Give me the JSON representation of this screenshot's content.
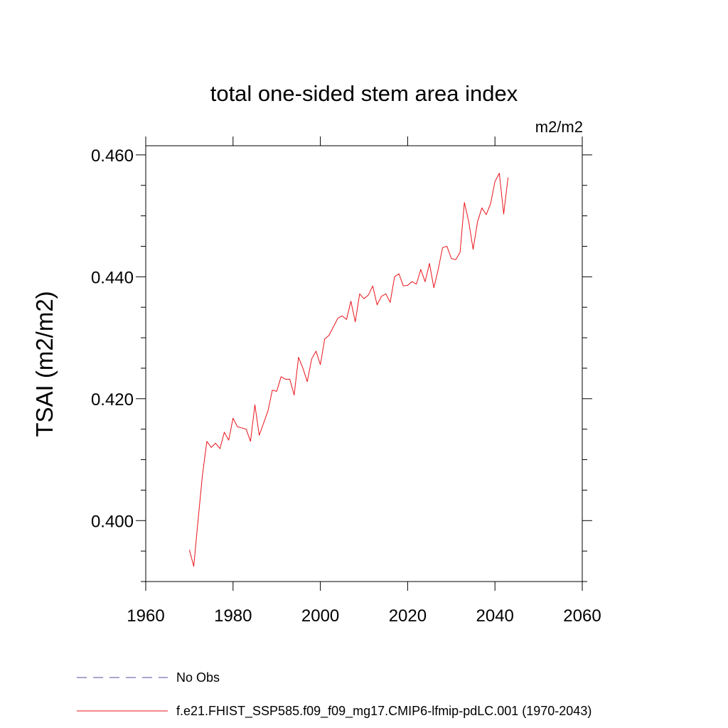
{
  "chart_data": {
    "type": "line",
    "title": "total one-sided stem area index",
    "units": "m2/m2",
    "xlabel": "",
    "ylabel": "TSAI  (m2/m2)",
    "xlim": [
      1960,
      2060
    ],
    "ylim": [
      0.39,
      0.4615
    ],
    "x_ticks": [
      1960,
      1980,
      2000,
      2020,
      2040,
      2060
    ],
    "x_tick_labels": [
      "1960",
      "1980",
      "2000",
      "2020",
      "2040",
      "2060"
    ],
    "y_ticks": [
      0.4,
      0.42,
      0.44,
      0.46
    ],
    "y_tick_labels": [
      "0.400",
      "0.420",
      "0.440",
      "0.460"
    ],
    "grid": false,
    "legend": [
      {
        "label": "No Obs",
        "color": "#5a4a9a",
        "style": "dashed"
      },
      {
        "label": "f.e21.FHIST_SSP585.f09_f09_mg17.CMIP6-lfmip-pdLC.001 (1970-2043)",
        "color": "#e8141b",
        "style": "solid"
      }
    ],
    "series": [
      {
        "name": "f.e21.FHIST_SSP585.f09_f09_mg17.CMIP6-lfmip-pdLC.001 (1970-2043)",
        "color": "#e8141b",
        "x": [
          1970,
          1971,
          1972,
          1973,
          1974,
          1975,
          1976,
          1977,
          1978,
          1979,
          1980,
          1981,
          1982,
          1983,
          1984,
          1985,
          1986,
          1987,
          1988,
          1989,
          1990,
          1991,
          1992,
          1993,
          1994,
          1995,
          1996,
          1997,
          1998,
          1999,
          2000,
          2001,
          2002,
          2003,
          2004,
          2005,
          2006,
          2007,
          2008,
          2009,
          2010,
          2011,
          2012,
          2013,
          2014,
          2015,
          2016,
          2017,
          2018,
          2019,
          2020,
          2021,
          2022,
          2023,
          2024,
          2025,
          2026,
          2027,
          2028,
          2029,
          2030,
          2031,
          2032,
          2033,
          2034,
          2035,
          2036,
          2037,
          2038,
          2039,
          2040,
          2041,
          2042,
          2043
        ],
        "values": [
          0.3952,
          0.3925,
          0.4002,
          0.4075,
          0.413,
          0.412,
          0.4127,
          0.4118,
          0.4145,
          0.4132,
          0.4168,
          0.4154,
          0.4152,
          0.415,
          0.413,
          0.419,
          0.414,
          0.416,
          0.418,
          0.4214,
          0.4212,
          0.4236,
          0.4232,
          0.4232,
          0.4206,
          0.4268,
          0.425,
          0.4228,
          0.4265,
          0.4278,
          0.4256,
          0.4298,
          0.4304,
          0.4318,
          0.4332,
          0.4336,
          0.433,
          0.436,
          0.4326,
          0.4372,
          0.4364,
          0.437,
          0.4385,
          0.4354,
          0.4368,
          0.4372,
          0.4358,
          0.44,
          0.4405,
          0.4385,
          0.4386,
          0.4392,
          0.4388,
          0.4412,
          0.4392,
          0.4422,
          0.4382,
          0.4412,
          0.4448,
          0.445,
          0.443,
          0.4428,
          0.444,
          0.4522,
          0.449,
          0.4445,
          0.449,
          0.4513,
          0.4502,
          0.452,
          0.4556,
          0.457,
          0.4503,
          0.4563
        ]
      }
    ]
  }
}
